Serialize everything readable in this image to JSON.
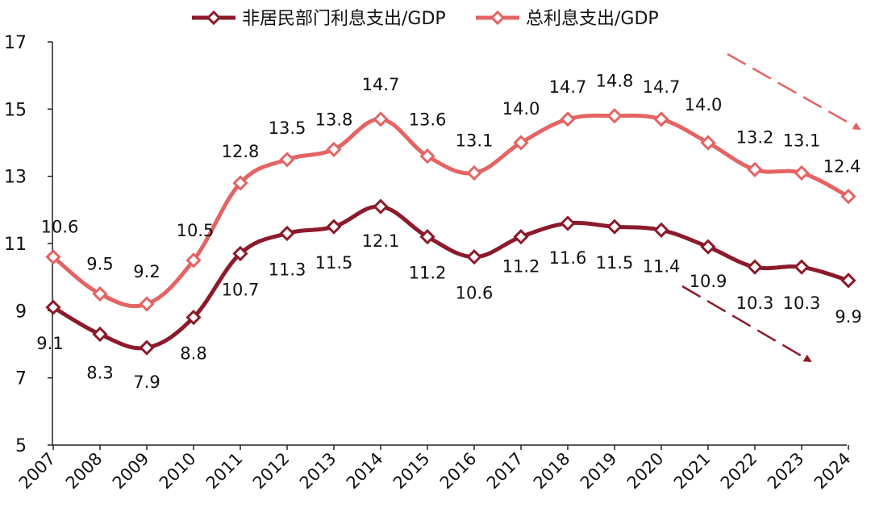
{
  "chart_data": {
    "type": "line",
    "categories": [
      "2007",
      "2008",
      "2009",
      "2010",
      "2011",
      "2012",
      "2013",
      "2014",
      "2015",
      "2016",
      "2017",
      "2018",
      "2019",
      "2020",
      "2021",
      "2022",
      "2023",
      "2024"
    ],
    "ylim": [
      5,
      17
    ],
    "yticks": [
      5,
      7,
      9,
      11,
      13,
      15,
      17
    ],
    "legend_position": "top-center",
    "series": [
      {
        "name": "非居民部门利息支出/GDP",
        "color": "#8B1A2B",
        "values": [
          9.1,
          8.3,
          7.9,
          8.8,
          10.7,
          11.3,
          11.5,
          12.1,
          11.2,
          10.6,
          11.2,
          11.6,
          11.5,
          11.4,
          10.9,
          10.3,
          10.3,
          9.9
        ],
        "labels": [
          "9.1",
          "8.3",
          "7.9",
          "8.8",
          "10.7",
          "11.3",
          "11.5",
          "12.1",
          "11.2",
          "10.6",
          "11.2",
          "11.6",
          "11.5",
          "11.4",
          "10.9",
          "10.3",
          "10.3",
          "9.9"
        ]
      },
      {
        "name": "总利息支出/GDP",
        "color": "#E46464",
        "values": [
          10.6,
          9.5,
          9.2,
          10.5,
          12.8,
          13.5,
          13.8,
          14.7,
          13.6,
          13.1,
          14.0,
          14.7,
          14.8,
          14.7,
          14.0,
          13.2,
          13.1,
          12.4
        ],
        "labels": [
          "10.6",
          "9.5",
          "9.2",
          "10.5",
          "12.8",
          "13.5",
          "13.8",
          "14.7",
          "13.6",
          "13.1",
          "14.0",
          "14.7",
          "14.8",
          "14.7",
          "14.0",
          "13.2",
          "13.1",
          "12.4"
        ]
      }
    ],
    "annotations": [
      {
        "type": "dashed-arrow",
        "color": "#E46464",
        "from": [
          "2021",
          16.7
        ],
        "to": [
          "2024",
          14.8
        ]
      },
      {
        "type": "dashed-arrow",
        "color": "#8B1A2B",
        "from": [
          "2021",
          10.7
        ],
        "to": [
          "2023.3",
          8.5
        ]
      }
    ]
  }
}
